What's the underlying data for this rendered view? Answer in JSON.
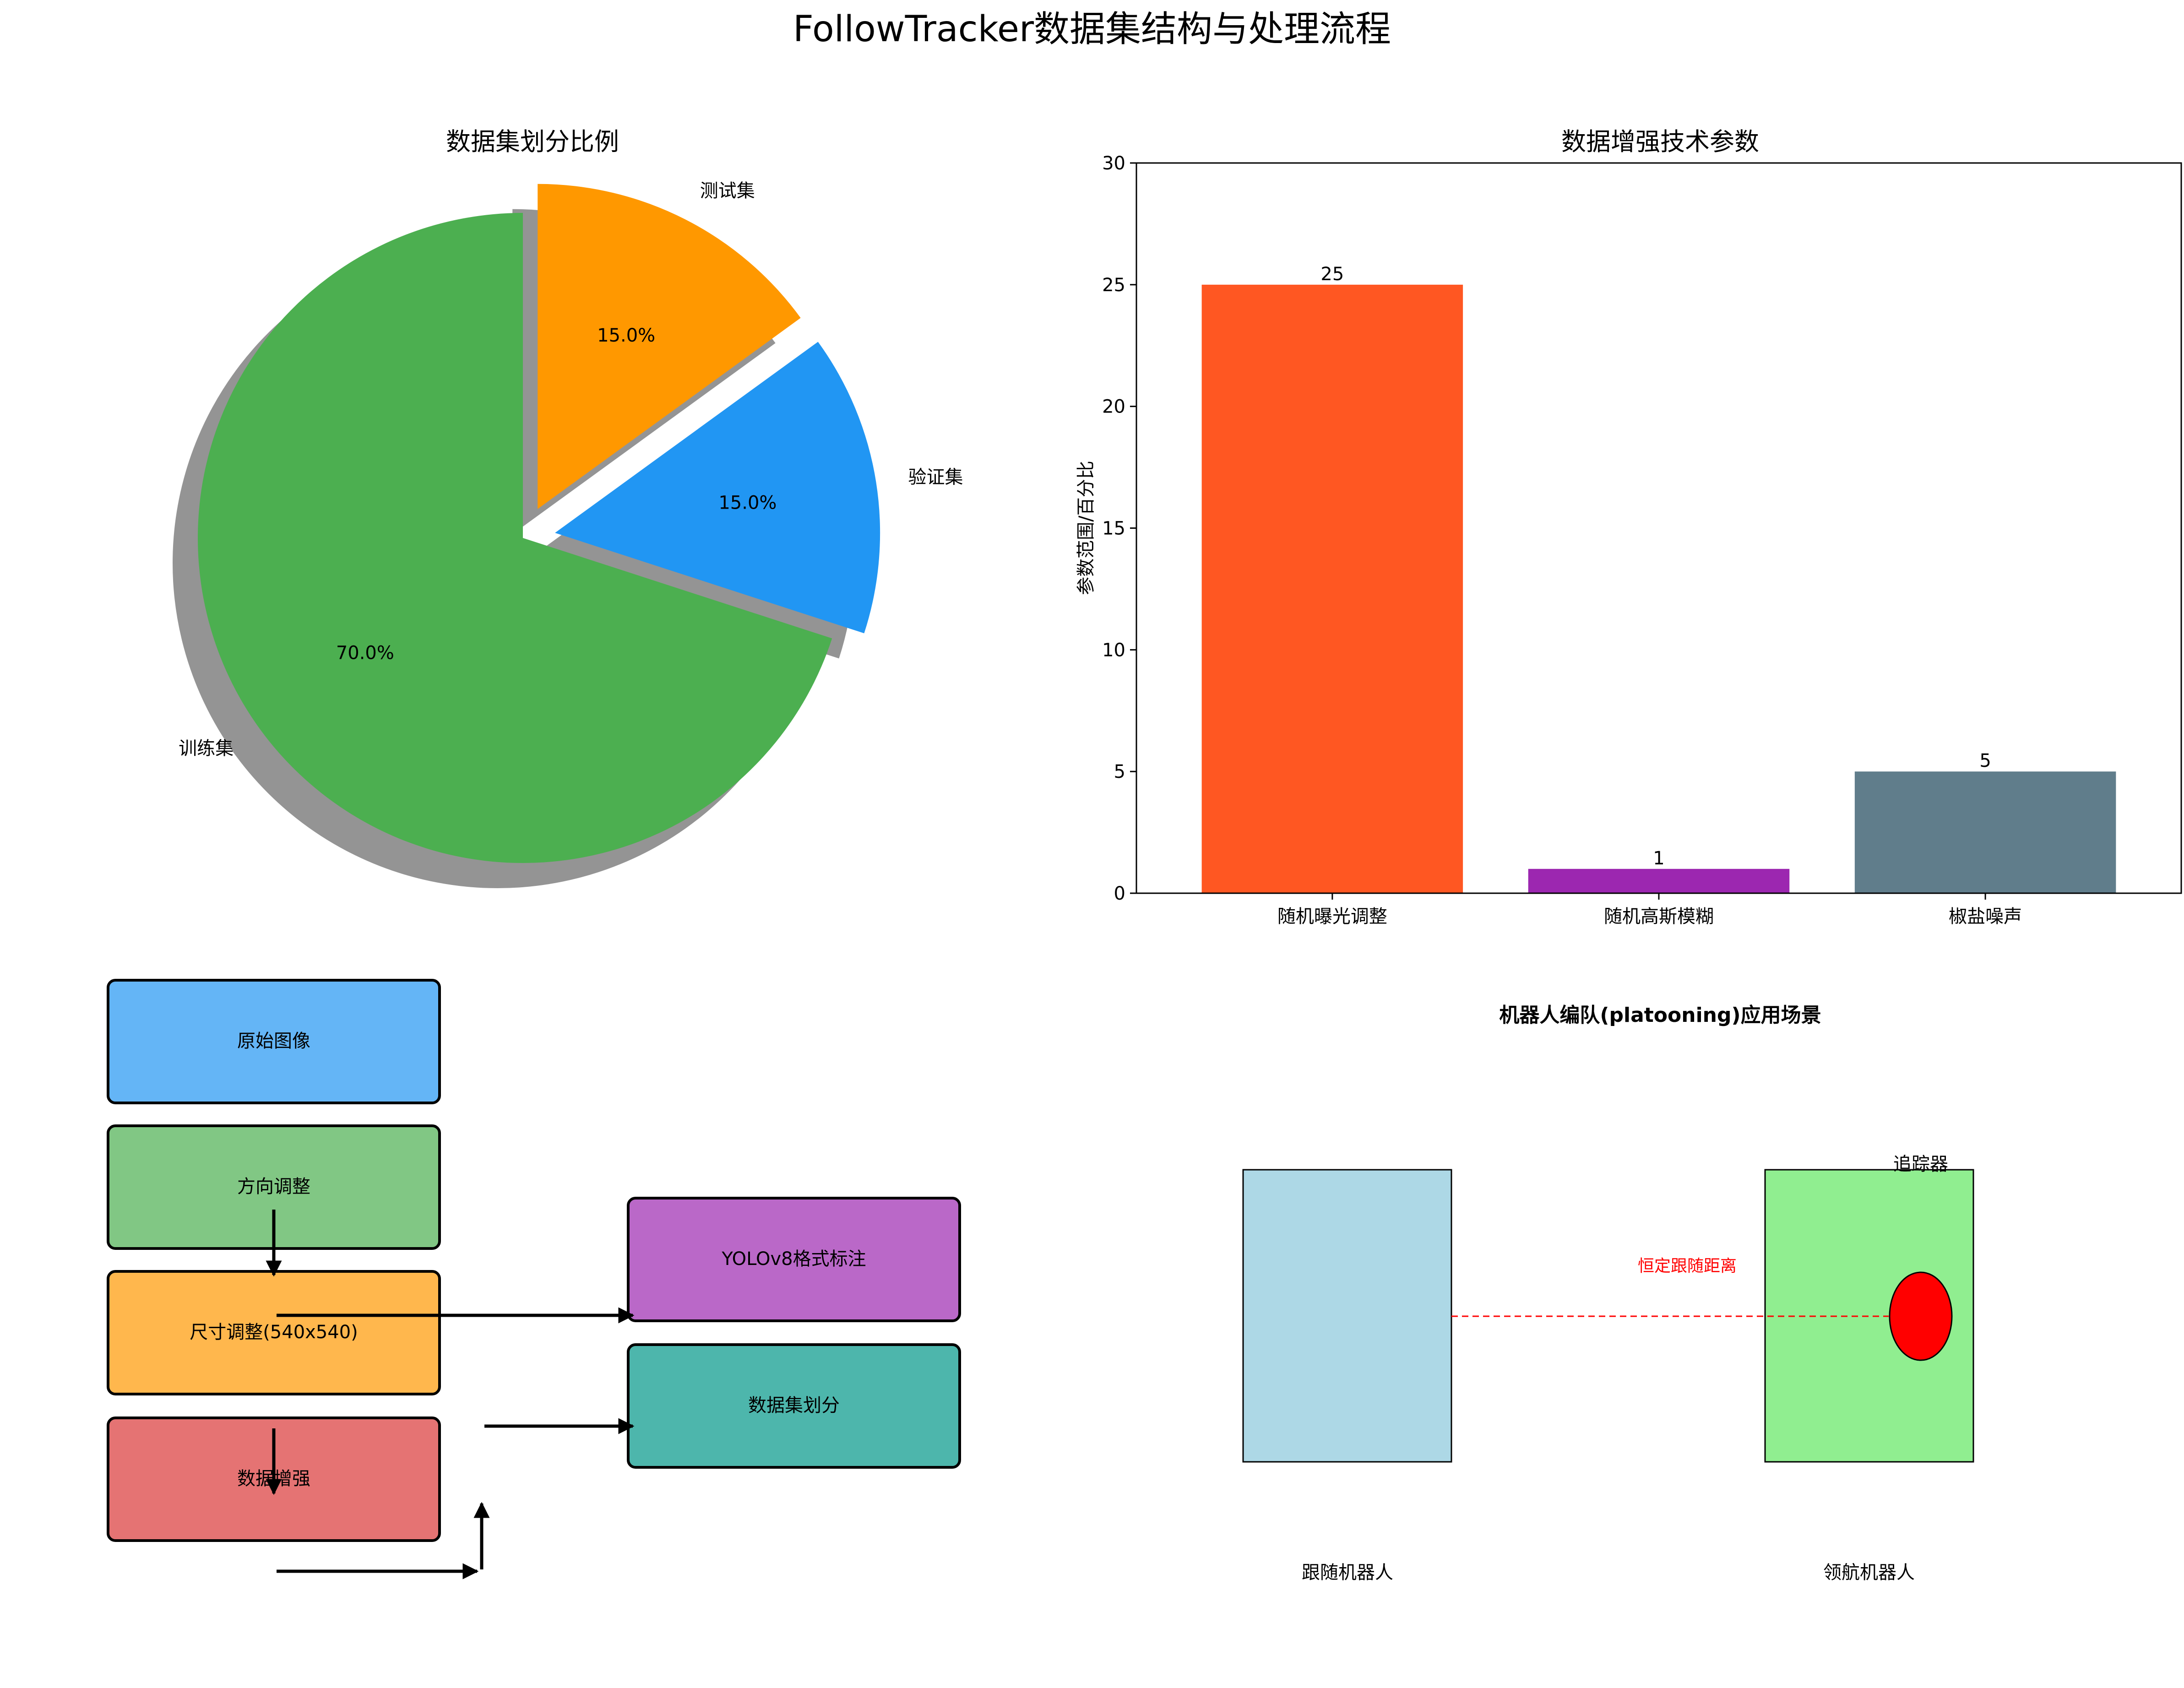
{
  "figure": {
    "title": "FollowTracker数据集结构与处理流程"
  },
  "chart_data": [
    {
      "type": "pie",
      "title": "数据集划分比例",
      "labels": [
        "训练集",
        "验证集",
        "测试集"
      ],
      "values": [
        70,
        15,
        15
      ],
      "pct_labels": [
        "70.0%",
        "15.0%",
        "15.0%"
      ],
      "colors": [
        "#4CAF50",
        "#2196F3",
        "#FF9800"
      ],
      "explode": [
        0,
        0.1,
        0.1
      ],
      "shadow": true,
      "start_angle_deg": 90
    },
    {
      "type": "bar",
      "title": "数据增强技术参数",
      "categories": [
        "随机曝光调整",
        "随机高斯模糊",
        "椒盐噪声"
      ],
      "values": [
        25,
        1,
        5
      ],
      "value_labels": [
        "25",
        "1",
        "5"
      ],
      "colors": [
        "#FF5722",
        "#9C27B0",
        "#607D8B"
      ],
      "ylabel": "参数范围/百分比",
      "xlabel": "",
      "ylim": [
        0,
        30
      ],
      "yticks": [
        "0",
        "5",
        "10",
        "15",
        "20",
        "25",
        "30"
      ],
      "grid": false
    }
  ],
  "flow": {
    "steps": [
      {
        "label": "原始图像",
        "color": "#64B5F6"
      },
      {
        "label": "方向调整",
        "color": "#81C784"
      },
      {
        "label": "尺寸调整(540x540)",
        "color": "#FFB74D"
      },
      {
        "label": "数据增强",
        "color": "#E57373"
      },
      {
        "label": "YOLOv8格式标注",
        "color": "#BA68C8"
      },
      {
        "label": "数据集划分",
        "color": "#4DB6AC"
      }
    ]
  },
  "scenario": {
    "title": "机器人编队(platooning)应用场景",
    "follower_label": "跟随机器人",
    "leader_label": "领航机器人",
    "tracker_label": "追踪器",
    "distance_label": "恒定跟随距离",
    "colors": {
      "follower": "#ADD8E6",
      "leader": "#90EE90",
      "tracker": "#FF0000",
      "distance_line": "#FF0000"
    }
  }
}
